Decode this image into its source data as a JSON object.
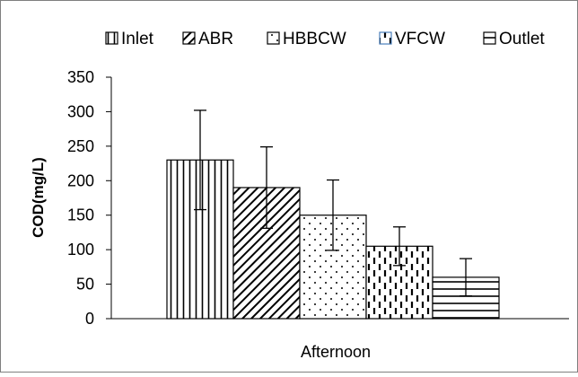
{
  "chart_data": {
    "type": "bar",
    "ylabel": "COD(mg/L)",
    "categories": [
      "Afternoon"
    ],
    "series": [
      {
        "name": "Inlet",
        "values": [
          230
        ],
        "error": [
          72
        ],
        "pattern": "vertical-lines"
      },
      {
        "name": "ABR",
        "values": [
          190
        ],
        "error": [
          59
        ],
        "pattern": "diagonal-lines"
      },
      {
        "name": "HBBCW",
        "values": [
          150
        ],
        "error": [
          51
        ],
        "pattern": "dots"
      },
      {
        "name": "VFCW",
        "values": [
          105
        ],
        "error": [
          28
        ],
        "pattern": "dashed-vertical"
      },
      {
        "name": "Outlet",
        "values": [
          60
        ],
        "error": [
          27
        ],
        "pattern": "horizontal-lines"
      }
    ],
    "ylim": [
      0,
      350
    ],
    "yticks": [
      "0",
      "50",
      "100",
      "150",
      "200",
      "250",
      "300",
      "350"
    ],
    "legend_position": "top",
    "grid": false,
    "colors": {
      "bar_stroke": "#000000",
      "frame": "#7f7f7f",
      "legend_vfcw_icon": "#4a7ebb"
    }
  }
}
